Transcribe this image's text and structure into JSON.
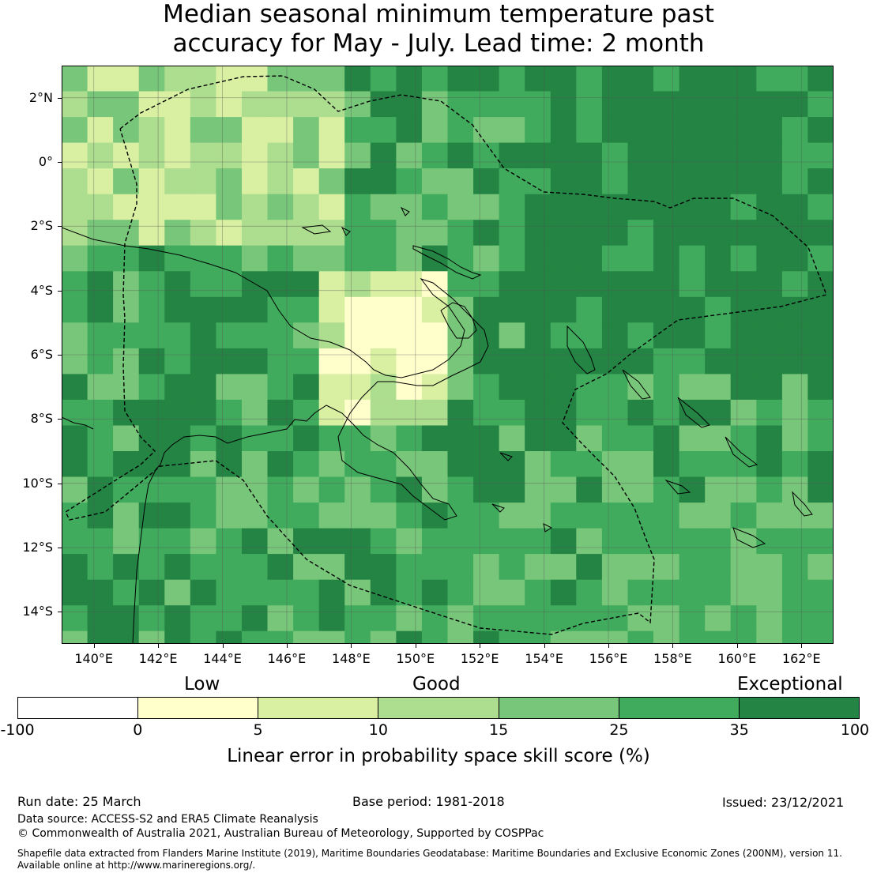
{
  "title": {
    "line1": "Median seasonal minimum temperature past",
    "line2": "accuracy for May - July. Lead time: 2 month"
  },
  "map": {
    "region": "Papua New Guinea",
    "lon_range": [
      139,
      163
    ],
    "lat_range": [
      -15,
      3
    ],
    "lat_labels": [
      "2°N",
      "0°",
      "2°S",
      "4°S",
      "6°S",
      "8°S",
      "10°S",
      "12°S",
      "14°S"
    ],
    "lon_labels": [
      "140°E",
      "142°E",
      "144°E",
      "146°E",
      "148°E",
      "150°E",
      "152°E",
      "154°E",
      "156°E",
      "158°E",
      "160°E",
      "162°E"
    ]
  },
  "legend": {
    "categories": [
      "Low",
      "Good",
      "Exceptional"
    ],
    "ticks": [
      "-100",
      "0",
      "5",
      "10",
      "15",
      "25",
      "35",
      "100"
    ],
    "colors": [
      "#ffffff",
      "#ffffcc",
      "#d9f0a3",
      "#addd8e",
      "#78c679",
      "#41ab5d",
      "#238443"
    ],
    "label": "Linear error in probability space skill score (%)"
  },
  "footer": {
    "run_date": "Run date: 25 March",
    "base_period": "Base period: 1981-2018",
    "issued": "Issued: 23/12/2021",
    "data_source": "Data source: ACCESS-S2 and ERA5 Climate Reanalysis",
    "copyright": "© Commonwealth of Australia 2021, Australian Bureau of Meteorology, Supported by COSPPac",
    "shapefile_line1": "Shapefile data extracted from Flanders Marine Institute (2019), Maritime Boundaries Geodatabase: Maritime Boundaries and Exclusive Economic Zones (200NM), version 11.",
    "shapefile_line2": "Available online at http://www.marineregions.org/."
  }
}
